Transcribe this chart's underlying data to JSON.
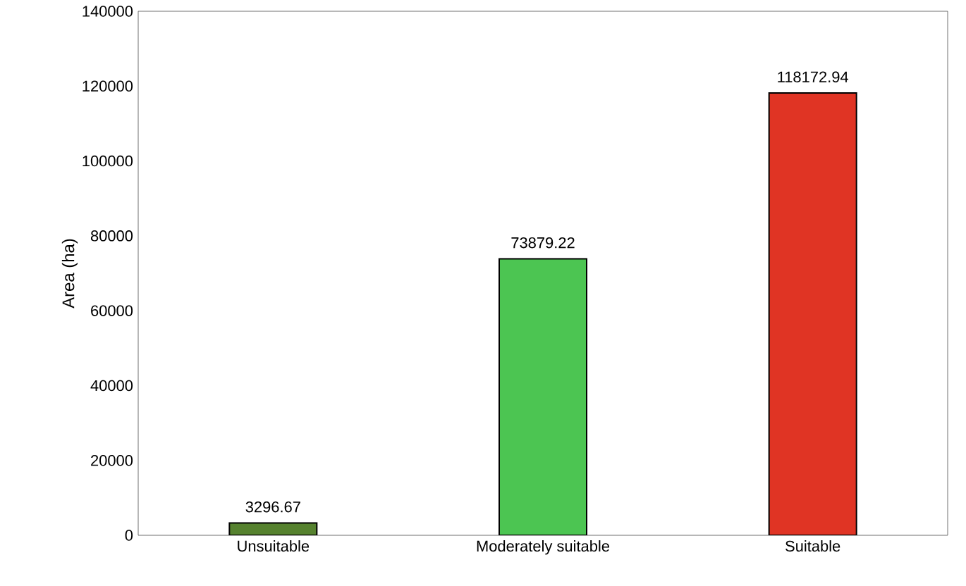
{
  "chart_data": {
    "type": "bar",
    "ylabel": "Area (ha)",
    "categories": [
      "Unsuitable",
      "Moderately suitable",
      "Suitable"
    ],
    "values": [
      3296.67,
      73879.22,
      118172.94
    ],
    "colors": [
      "#56822f",
      "#4cc552",
      "#e03424"
    ],
    "value_labels": [
      "3296.67",
      "73879.22",
      "118172.94"
    ],
    "ylim": [
      0,
      140000
    ],
    "yticks": [
      0,
      20000,
      40000,
      60000,
      80000,
      100000,
      120000,
      140000
    ],
    "grid": false
  }
}
